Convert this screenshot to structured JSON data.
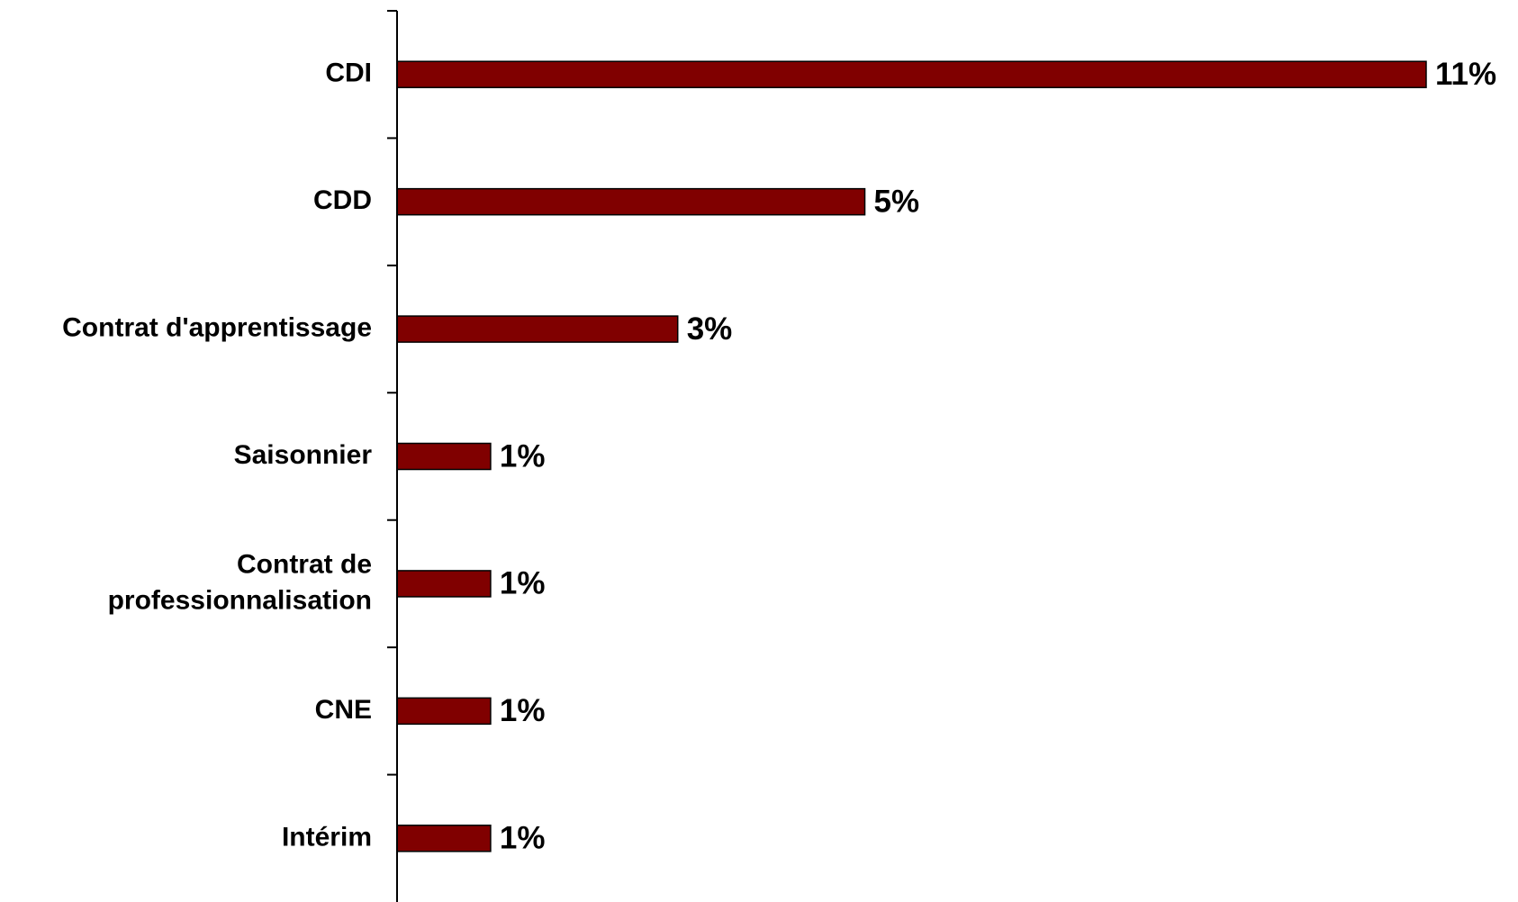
{
  "chart_data": {
    "type": "bar",
    "orientation": "horizontal",
    "title": "",
    "xlabel": "",
    "ylabel": "",
    "categories": [
      [
        "CDI"
      ],
      [
        "CDD"
      ],
      [
        "Contrat d'apprentissage"
      ],
      [
        "Saisonnier"
      ],
      [
        "Contrat de",
        "professionnalisation"
      ],
      [
        "CNE"
      ],
      [
        "Intérim"
      ]
    ],
    "values": [
      11,
      5,
      3,
      1,
      1,
      1,
      1
    ],
    "data_labels": [
      "11%",
      "5%",
      "3%",
      "1%",
      "1%",
      "1%",
      "1%"
    ],
    "unit": "%",
    "xlim": [
      0,
      11
    ],
    "grid": false,
    "legend": "none",
    "colors": {
      "bar_fill": "#800000",
      "bar_stroke": "#000000",
      "axis": "#000000",
      "text": "#000000"
    }
  }
}
